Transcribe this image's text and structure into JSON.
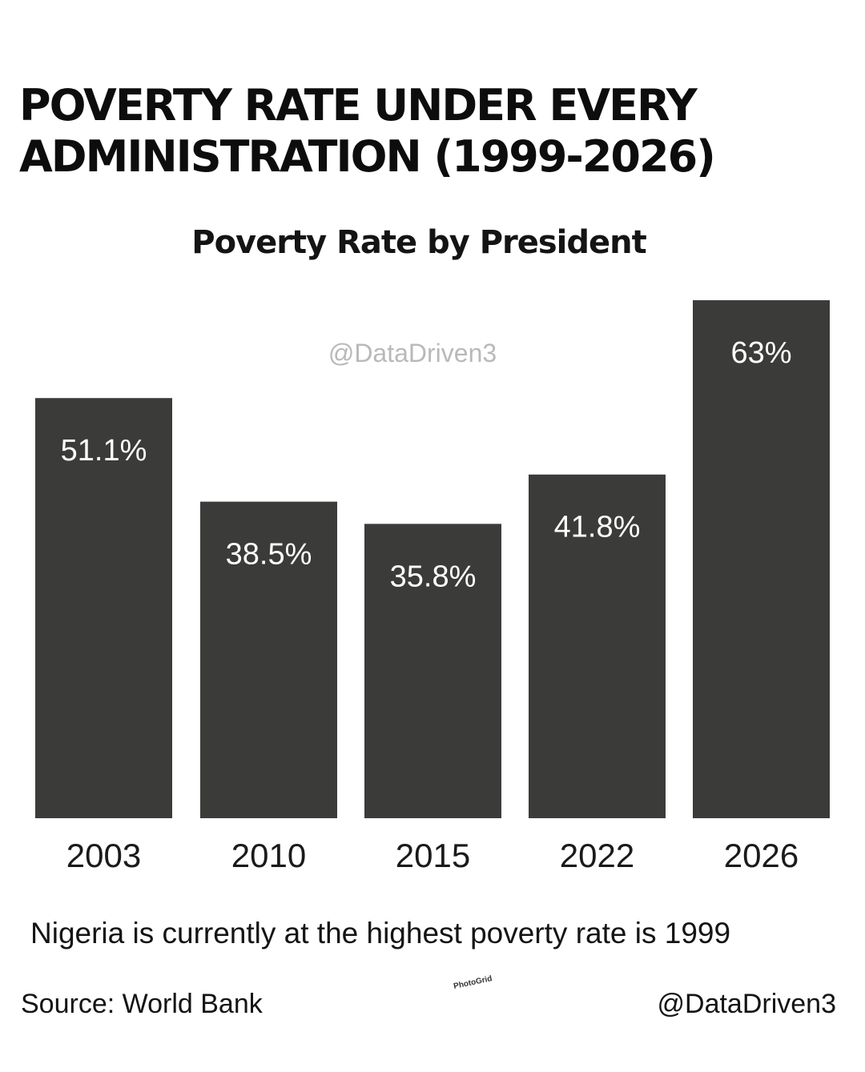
{
  "headline": {
    "line1": "POVERTY RATE UNDER EVERY",
    "line2": "ADMINISTRATION (1999-2026)"
  },
  "chart_data": {
    "type": "bar",
    "title": "Poverty Rate by President",
    "categories": [
      "2003",
      "2010",
      "2015",
      "2022",
      "2026"
    ],
    "values": [
      51.1,
      38.5,
      35.8,
      41.8,
      63
    ],
    "value_labels": [
      "51.1%",
      "38.5%",
      "35.8%",
      "41.8%",
      "63%"
    ],
    "unit": "%",
    "grid": false,
    "bar_color": "#3b3b3a",
    "watermark": "@DataDriven3"
  },
  "footer": {
    "note": "Nigeria is currently at the highest poverty rate is 1999",
    "source": "Source: World Bank",
    "handle": "@DataDriven3",
    "photogrid": "PhotoGrid"
  }
}
